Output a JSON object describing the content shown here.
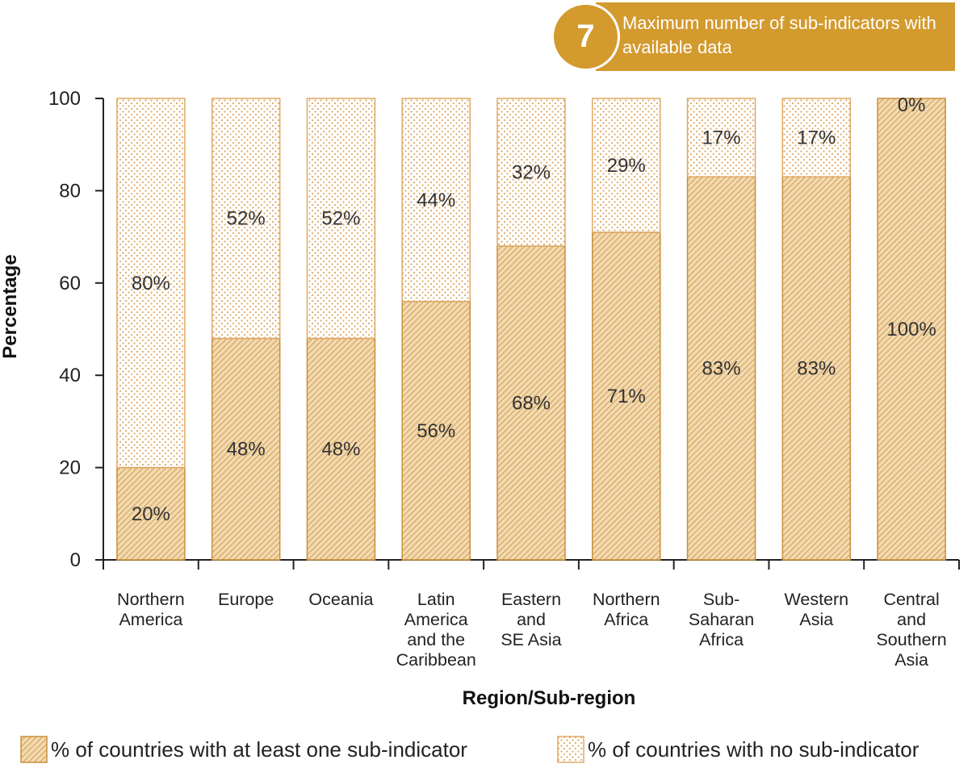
{
  "badge": {
    "number": "7",
    "text": "Maximum number of sub-indicators with available data"
  },
  "colors": {
    "accent": "#d39a2e",
    "hatch_fill": "#f2d9b0",
    "hatch_line": "#c98f3a",
    "dot_fill": "#ffffff",
    "dot": "#e0a864"
  },
  "chart_data": {
    "type": "bar",
    "stacked": true,
    "xlabel": "Region/Sub-region",
    "ylabel": "Percentage",
    "ylim": [
      0,
      100
    ],
    "yticks": [
      0,
      20,
      40,
      60,
      80,
      100
    ],
    "categories": [
      "Northern\nAmerica",
      "Europe",
      "Oceania",
      "Latin\nAmerica\nand the\nCaribbean",
      "Eastern\nand\nSE Asia",
      "Northern\nAfrica",
      "Sub-\nSaharan\nAfrica",
      "Western\nAsia",
      "Central\nand\nSouthern\nAsia"
    ],
    "series": [
      {
        "name": "% of countries with at least one sub-indicator",
        "values": [
          20,
          48,
          48,
          56,
          68,
          71,
          83,
          83,
          100
        ],
        "labels": [
          "20%",
          "48%",
          "48%",
          "56%",
          "68%",
          "71%",
          "83%",
          "83%",
          "100%"
        ]
      },
      {
        "name": "% of countries with no sub-indicator",
        "values": [
          80,
          52,
          52,
          44,
          32,
          29,
          17,
          17,
          0
        ],
        "labels": [
          "80%",
          "52%",
          "52%",
          "44%",
          "32%",
          "29%",
          "17%",
          "17%",
          "0%"
        ]
      }
    ],
    "grid": false,
    "legend_position": "bottom"
  }
}
